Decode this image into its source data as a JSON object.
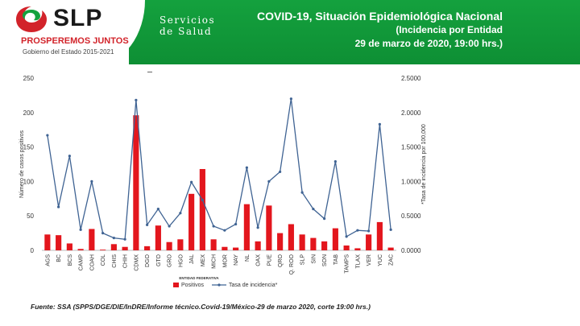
{
  "header": {
    "logo_text": "SLP",
    "logo_tagline": "PROSPEREMOS JUNTOS",
    "logo_government": "Gobierno del Estado 2015-2021",
    "department_line1": "Servicios",
    "department_line2": "de Salud",
    "title": "COVID-19, Situación Epidemiológica Nacional",
    "subtitle": "(Incidencia por Entidad",
    "date": "29 de marzo de 2020, 19:00 hrs.)",
    "colors": {
      "green": "#0e8f34",
      "red": "#d2232a"
    }
  },
  "source": "Fuente: SSA (SPPS/DGE/DIE/InDRE/Informe técnico.Covid-19/México-29 de marzo 2020, corte 19:00 hrs.)",
  "chart_data": {
    "type": "bar",
    "categories": [
      "AGS",
      "BC",
      "BCS",
      "CAMP",
      "COAH",
      "COL",
      "CHIS",
      "CHIH",
      "CDMX",
      "DGO",
      "GTO",
      "GRO",
      "HGO",
      "JAL",
      "MEX",
      "MICH",
      "MOR",
      "NAY",
      "NL",
      "OAX",
      "PUE",
      "QRO",
      "Q. ROO",
      "SLP",
      "SIN",
      "SON",
      "TAB",
      "TAMPS",
      "TLAX",
      "VER",
      "YUC",
      "ZAC"
    ],
    "series": [
      {
        "name": "Positivos",
        "axis": "left",
        "color": "#e3161d",
        "values": [
          23,
          22,
          10,
          2,
          31,
          1,
          9,
          5,
          196,
          6,
          36,
          12,
          16,
          82,
          118,
          16,
          5,
          4,
          67,
          13,
          65,
          25,
          38,
          23,
          18,
          13,
          32,
          7,
          3,
          23,
          41,
          4
        ]
      },
      {
        "name": "Tasa de incidencia*",
        "axis": "right",
        "color": "#3f6393",
        "values": [
          1.67,
          0.63,
          1.37,
          0.3,
          1.0,
          0.25,
          0.18,
          0.16,
          2.18,
          0.37,
          0.6,
          0.35,
          0.54,
          0.99,
          0.73,
          0.35,
          0.29,
          0.38,
          1.2,
          0.33,
          1.0,
          1.14,
          2.2,
          0.84,
          0.6,
          0.46,
          1.29,
          0.2,
          0.29,
          0.28,
          1.83,
          0.3
        ]
      }
    ],
    "xlabel": "ENTIDAD FEDERATIVA",
    "ylabel": "Número de casos positivos",
    "y2label": "*Tasa de incidencia por 100,000",
    "ylim": [
      0,
      250
    ],
    "y2lim": [
      0,
      2.5
    ],
    "yticks": [
      "0",
      "50",
      "100",
      "150",
      "200",
      "250"
    ],
    "y2ticks": [
      "0.0000",
      "0.5000",
      "1.0000",
      "1.5000",
      "2.0000",
      "2.5000"
    ],
    "legend_position": "bottom",
    "gridlines": false
  }
}
